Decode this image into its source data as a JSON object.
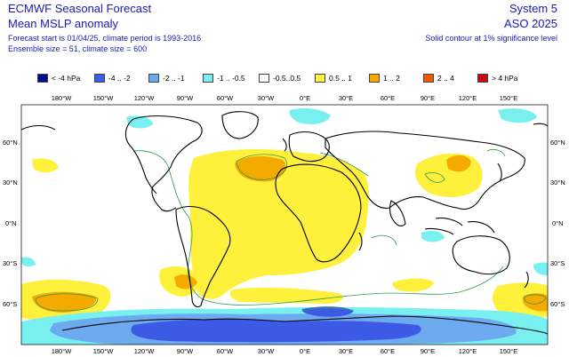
{
  "header": {
    "title": "ECMWF Seasonal Forecast",
    "subtitle": "Mean MSLP anomaly",
    "forecast_info": "Forecast start is 01/04/25, climate period is 1993-2016",
    "ensemble_info": "Ensemble size = 51, climate size = 600",
    "system": "System 5",
    "season": "ASO 2025",
    "significance_note": "Solid contour at 1% significance level"
  },
  "legend": [
    {
      "label": "< -4 hPa",
      "color": "#0a0a8c"
    },
    {
      "label": "-4 .. -2",
      "color": "#3c5ae6"
    },
    {
      "label": "-2 .. -1",
      "color": "#6eaaf0"
    },
    {
      "label": "-1 .. -0.5",
      "color": "#78f0f0"
    },
    {
      "label": "-0.5..0.5",
      "color": "#ffffff"
    },
    {
      "label": "0.5 .. 1",
      "color": "#fff03c"
    },
    {
      "label": "1 .. 2",
      "color": "#f5aa00"
    },
    {
      "label": "2 .. 4",
      "color": "#f05a00"
    },
    {
      "label": "> 4 hPa",
      "color": "#c80a14"
    }
  ],
  "map": {
    "lon_labels": [
      "180°W",
      "150°W",
      "120°W",
      "90°W",
      "60°W",
      "30°W",
      "0°E",
      "30°E",
      "60°E",
      "90°E",
      "120°E",
      "150°E"
    ],
    "lat_labels": [
      "60°N",
      "30°N",
      "0°N",
      "30°S",
      "60°S"
    ]
  }
}
